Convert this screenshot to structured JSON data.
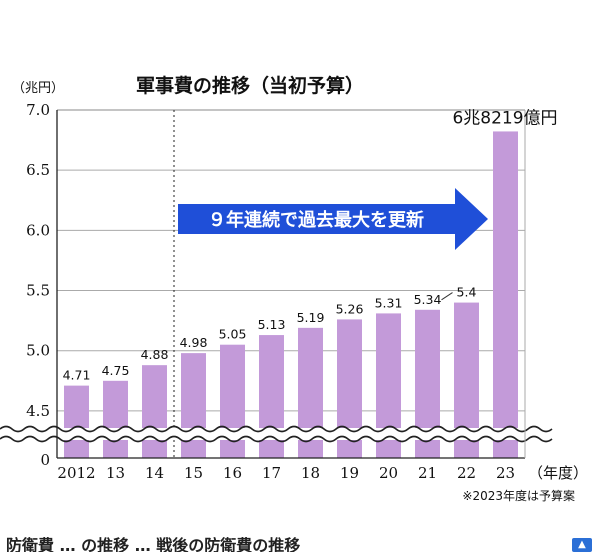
{
  "chart_data": {
    "type": "bar",
    "title": "軍事費の推移（当初予算）",
    "unit_label": "（兆円）",
    "x_unit_label": "（年度）",
    "categories": [
      "2012",
      "13",
      "14",
      "15",
      "16",
      "17",
      "18",
      "19",
      "20",
      "21",
      "22",
      "23"
    ],
    "values": [
      4.71,
      4.75,
      4.88,
      4.98,
      5.05,
      5.13,
      5.19,
      5.26,
      5.31,
      5.34,
      5.4,
      6.8219
    ],
    "data_labels": [
      "4.71",
      "4.75",
      "4.88",
      "4.98",
      "5.05",
      "5.13",
      "5.19",
      "5.26",
      "5.31",
      "5.34",
      "5.4",
      "6兆8219億円"
    ],
    "yticks": [
      "7.0",
      "6.5",
      "6.0",
      "5.5",
      "5.0",
      "4.5",
      "0"
    ],
    "ylim": [
      0,
      7.0
    ],
    "axis_break": true,
    "grid": true,
    "divider_after_category": "14",
    "arrow_text": "９年連続で過去最大を更新",
    "note": "※2023年度は予算案",
    "bar_color": "#c39ad9",
    "arrow_color": "#1f4fd8"
  },
  "footer": {
    "text": "防衛費 … の推移 … 戦後の防衛費の推移"
  }
}
